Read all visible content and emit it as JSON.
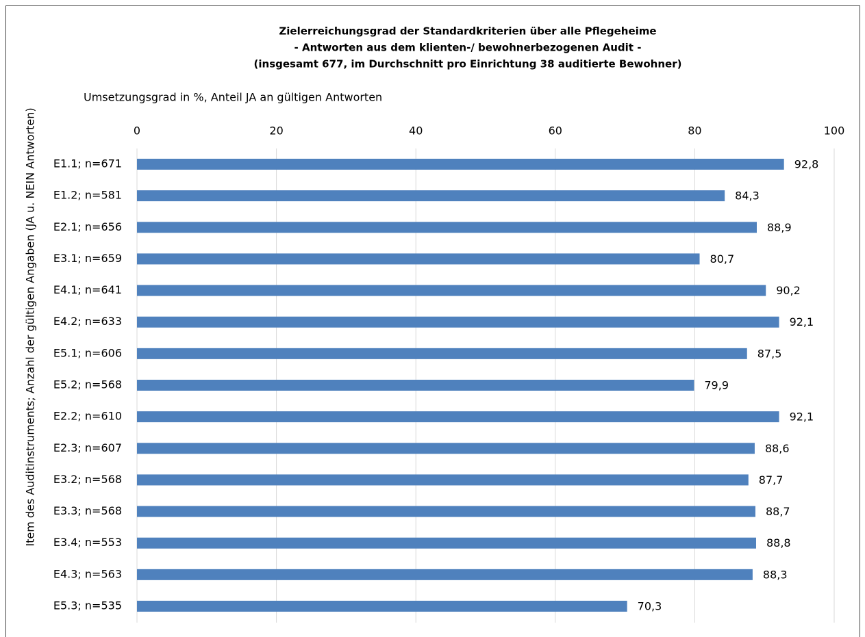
{
  "chart_data": {
    "type": "bar",
    "orientation": "horizontal",
    "title": [
      "Zielerreichungsgrad der Standardkriterien über alle Pflegeheime",
      "- Antworten aus dem klienten-/ bewohnerbezogenen Audit -",
      "(insgesamt 677, im Durchschnitt pro Einrichtung 38 auditierte Bewohner)"
    ],
    "x_label": "Umsetzungsgrad in %, Anteil JA an gültigen Antworten",
    "y_label": "Item des Auditinstruments; Anzahl der gültigen Angaben (JA u. NEIN Antworten)",
    "categories": [
      "E1.1; n=671",
      "E1.2; n=581",
      "E2.1; n=656",
      "E3.1; n=659",
      "E4.1; n=641",
      "E4.2; n=633",
      "E5.1; n=606",
      "E5.2; n=568",
      "E2.2; n=610",
      "E2.3; n=607",
      "E3.2; n=568",
      "E3.3; n=568",
      "E3.4; n=553",
      "E4.3; n=563",
      "E5.3; n=535"
    ],
    "values": [
      92.8,
      84.3,
      88.9,
      80.7,
      90.2,
      92.1,
      87.5,
      79.9,
      92.1,
      88.6,
      87.7,
      88.7,
      88.8,
      88.3,
      70.3
    ],
    "value_labels": [
      "92,8",
      "84,3",
      "88,9",
      "80,7",
      "90,2",
      "92,1",
      "87,5",
      "79,9",
      "92,1",
      "88,6",
      "87,7",
      "88,7",
      "88,8",
      "88,3",
      "70,3"
    ],
    "color": "#4f81bd",
    "xlim": [
      0,
      100
    ],
    "xticks": [
      0,
      20,
      40,
      60,
      80,
      100
    ],
    "grid": true
  }
}
